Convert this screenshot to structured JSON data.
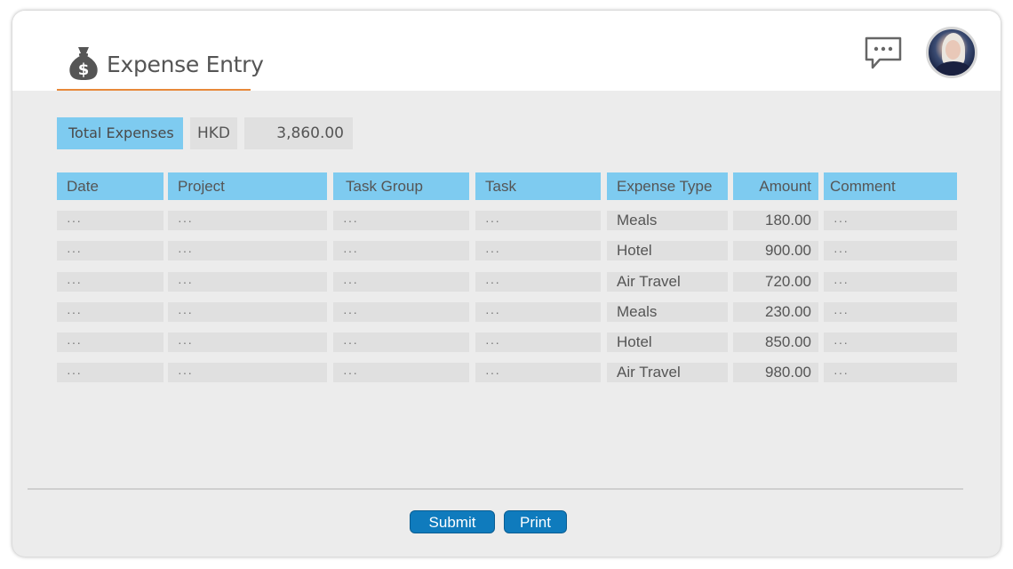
{
  "header": {
    "title": "Expense Entry",
    "icons": {
      "title_icon": "money-bag-icon",
      "chat_icon": "chat-bubble-icon",
      "avatar": "user-avatar"
    }
  },
  "summary": {
    "label": "Total Expenses",
    "currency": "HKD",
    "total": "3,860.00"
  },
  "table": {
    "columns": [
      "Date",
      "Project",
      "Task Group",
      "Task",
      "Expense Type",
      "Amount",
      "Comment"
    ],
    "rows": [
      {
        "date": "···",
        "project": "···",
        "task_group": "···",
        "task": "···",
        "expense_type": "Meals",
        "amount": "180.00",
        "comment": "···"
      },
      {
        "date": "···",
        "project": "···",
        "task_group": "···",
        "task": "···",
        "expense_type": "Hotel",
        "amount": "900.00",
        "comment": "···"
      },
      {
        "date": "···",
        "project": "···",
        "task_group": "···",
        "task": "···",
        "expense_type": "Air Travel",
        "amount": "720.00",
        "comment": "···"
      },
      {
        "date": "···",
        "project": "···",
        "task_group": "···",
        "task": "···",
        "expense_type": "Meals",
        "amount": "230.00",
        "comment": "···"
      },
      {
        "date": "···",
        "project": "···",
        "task_group": "···",
        "task": "···",
        "expense_type": "Hotel",
        "amount": "850.00",
        "comment": "···"
      },
      {
        "date": "···",
        "project": "···",
        "task_group": "···",
        "task": "···",
        "expense_type": "Air Travel",
        "amount": "980.00",
        "comment": "···"
      }
    ]
  },
  "actions": {
    "submit": "Submit",
    "print": "Print"
  },
  "colors": {
    "header_cell": "#7ecbf0",
    "button": "#0f7bbd",
    "accent_underline": "#e8893a",
    "panel": "#ececec",
    "cell": "#e0e0e0"
  }
}
